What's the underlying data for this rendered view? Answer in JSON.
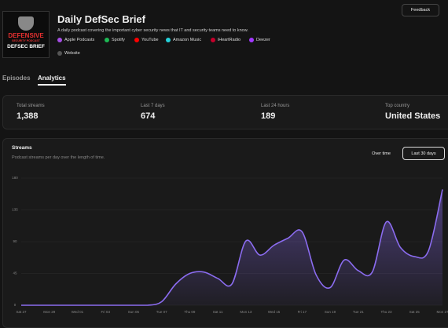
{
  "header": {
    "logo": {
      "line1": "DEFENSIVE",
      "line2": "SECURITY PODCAST",
      "line3": "DEFSEC BRIEF"
    },
    "title": "Daily DefSec Brief",
    "description": "A daily podcast covering the important cyber security news that IT and security teams need to know.",
    "links": [
      "Apple Podcasts",
      "Spotify",
      "YouTube",
      "Amazon Music",
      "iHeartRadio",
      "Deezer",
      "Website"
    ],
    "feedback": "Feedback"
  },
  "tabs": [
    "Episodes",
    "Analytics"
  ],
  "stats": [
    {
      "label": "Total streams",
      "value": "1,388"
    },
    {
      "label": "Last 7 days",
      "value": "674"
    },
    {
      "label": "Last 24 hours",
      "value": "189"
    },
    {
      "label": "Top country",
      "value": "United States"
    }
  ],
  "chart_data": {
    "type": "area",
    "title": "Streams",
    "subtitle": "Podcast streams per day over the length of time.",
    "controls": [
      "Over time",
      "Last 30 days"
    ],
    "categories": [
      "Sat 27",
      null,
      "Mon 29",
      null,
      "Wed 01",
      null,
      "Fri 03",
      null,
      "Sun 05",
      null,
      "Tue 07",
      null,
      "Thu 09",
      null,
      "Sat 11",
      null,
      "Mon 13",
      null,
      "Wed 15",
      null,
      "Fri 17",
      null,
      "Sun 19",
      null,
      "Tue 21",
      null,
      "Thu 23",
      null,
      "Sat 25",
      null,
      "Mon 27"
    ],
    "values": [
      0,
      0,
      0,
      0,
      0,
      0,
      0,
      0,
      0,
      0,
      5,
      30,
      45,
      47,
      38,
      30,
      91,
      71,
      85,
      95,
      104,
      43,
      25,
      64,
      49,
      47,
      118,
      82,
      69,
      77,
      164
    ],
    "color": "#8b6cf0",
    "ylim": [
      0,
      180
    ],
    "yticks": [
      0,
      45,
      90,
      135,
      180
    ],
    "grid": true
  }
}
